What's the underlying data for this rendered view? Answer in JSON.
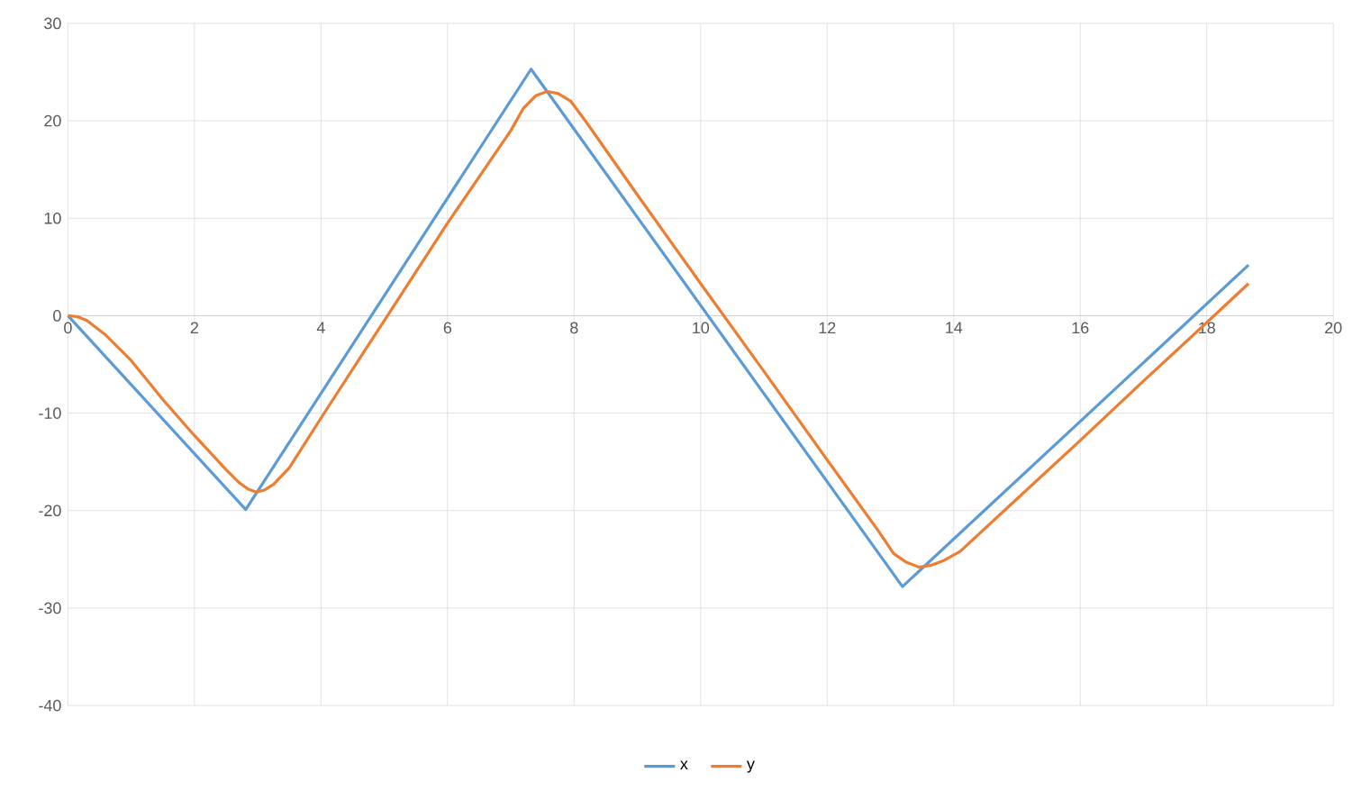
{
  "chart_data": {
    "type": "line",
    "xlim": [
      0,
      20
    ],
    "ylim": [
      -40,
      30
    ],
    "xticks": [
      0,
      2,
      4,
      6,
      8,
      10,
      12,
      14,
      16,
      18,
      20
    ],
    "yticks": [
      -40,
      -30,
      -20,
      -10,
      0,
      10,
      20,
      30
    ],
    "grid": true,
    "legend": "bottom",
    "marker": "none",
    "series": [
      {
        "name": "x",
        "color": "#5b9bd5",
        "x": [
          0,
          2.81,
          7.32,
          13.19,
          18.66
        ],
        "values": [
          0,
          -19.9,
          25.3,
          -27.8,
          5.2
        ]
      },
      {
        "name": "y",
        "color": "#ed7d31",
        "x": [
          0,
          0.15,
          0.3,
          0.6,
          1,
          1.5,
          2,
          2.5,
          2.7,
          2.85,
          2.98,
          3.1,
          3.25,
          3.5,
          4,
          4.68,
          5,
          6,
          7,
          7.2,
          7.4,
          7.57,
          7.75,
          7.95,
          8.2,
          9,
          10,
          11,
          12,
          12.5,
          12.8,
          13.05,
          13.25,
          13.45,
          13.65,
          13.85,
          14.1,
          15,
          16,
          17,
          18,
          18.66
        ],
        "values": [
          0,
          -0.1,
          -0.5,
          -2,
          -4.6,
          -8.6,
          -12.3,
          -15.8,
          -17.1,
          -17.8,
          -18.1,
          -17.9,
          -17.3,
          -15.6,
          -10.5,
          -3.7,
          -0.5,
          9.5,
          19,
          21.3,
          22.6,
          23,
          22.8,
          22,
          19.8,
          12.4,
          3.3,
          -5.7,
          -14.8,
          -19.3,
          -22,
          -24.4,
          -25.3,
          -25.8,
          -25.6,
          -25.1,
          -24.2,
          -18.8,
          -12.8,
          -6.7,
          -0.7,
          3.3
        ]
      }
    ]
  }
}
